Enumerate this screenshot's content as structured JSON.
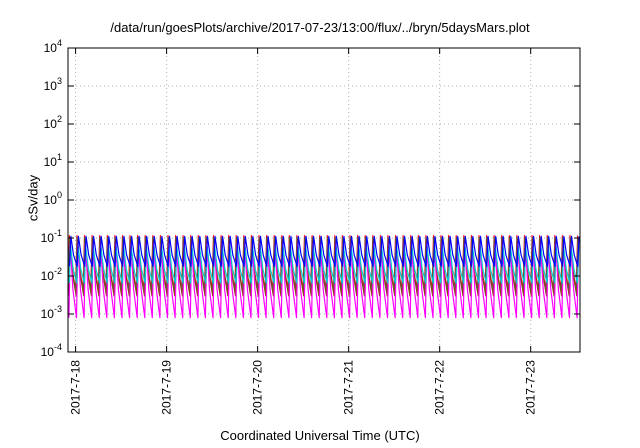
{
  "chart_data": {
    "type": "line",
    "title": "/data/run/goesPlots/archive/2017-07-23/13:00/flux/../bryn/5daysMars.plot",
    "xlabel": "Coordinated Universal Time (UTC)",
    "ylabel": "cSv/day",
    "yscale": "log",
    "ylim": [
      0.0001,
      10000
    ],
    "y_ticks": [
      {
        "value": 0.0001,
        "base": "10",
        "exp": "-4"
      },
      {
        "value": 0.001,
        "base": "10",
        "exp": "-3"
      },
      {
        "value": 0.01,
        "base": "10",
        "exp": "-2"
      },
      {
        "value": 0.1,
        "base": "10",
        "exp": "-1"
      },
      {
        "value": 1,
        "base": "10",
        "exp": "0"
      },
      {
        "value": 10,
        "base": "10",
        "exp": "1"
      },
      {
        "value": 100,
        "base": "10",
        "exp": "2"
      },
      {
        "value": 1000,
        "base": "10",
        "exp": "3"
      },
      {
        "value": 10000,
        "base": "10",
        "exp": "4"
      }
    ],
    "xlim": [
      "2017-07-17T22:00",
      "2017-07-23T13:00"
    ],
    "x_ticks": [
      "2017-7-18",
      "2017-7-19",
      "2017-7-20",
      "2017-7-21",
      "2017-7-22",
      "2017-7-23"
    ],
    "grid": true,
    "cycle_hours": 2,
    "series": [
      {
        "color": "#ff0000",
        "peak": 0.115,
        "trough": 0.0045
      },
      {
        "color": "#008b8b",
        "peak": 0.1,
        "trough": 0.0035
      },
      {
        "color": "#8b4513",
        "peak": 0.095,
        "trough": 0.003
      },
      {
        "color": "#ff00ff",
        "peak": 0.07,
        "trough": 0.0008
      },
      {
        "color": "#00ced1",
        "peak": 0.06,
        "trough": 0.0065
      },
      {
        "color": "#0000ff",
        "peak": 0.11,
        "trough": 0.018
      }
    ]
  }
}
